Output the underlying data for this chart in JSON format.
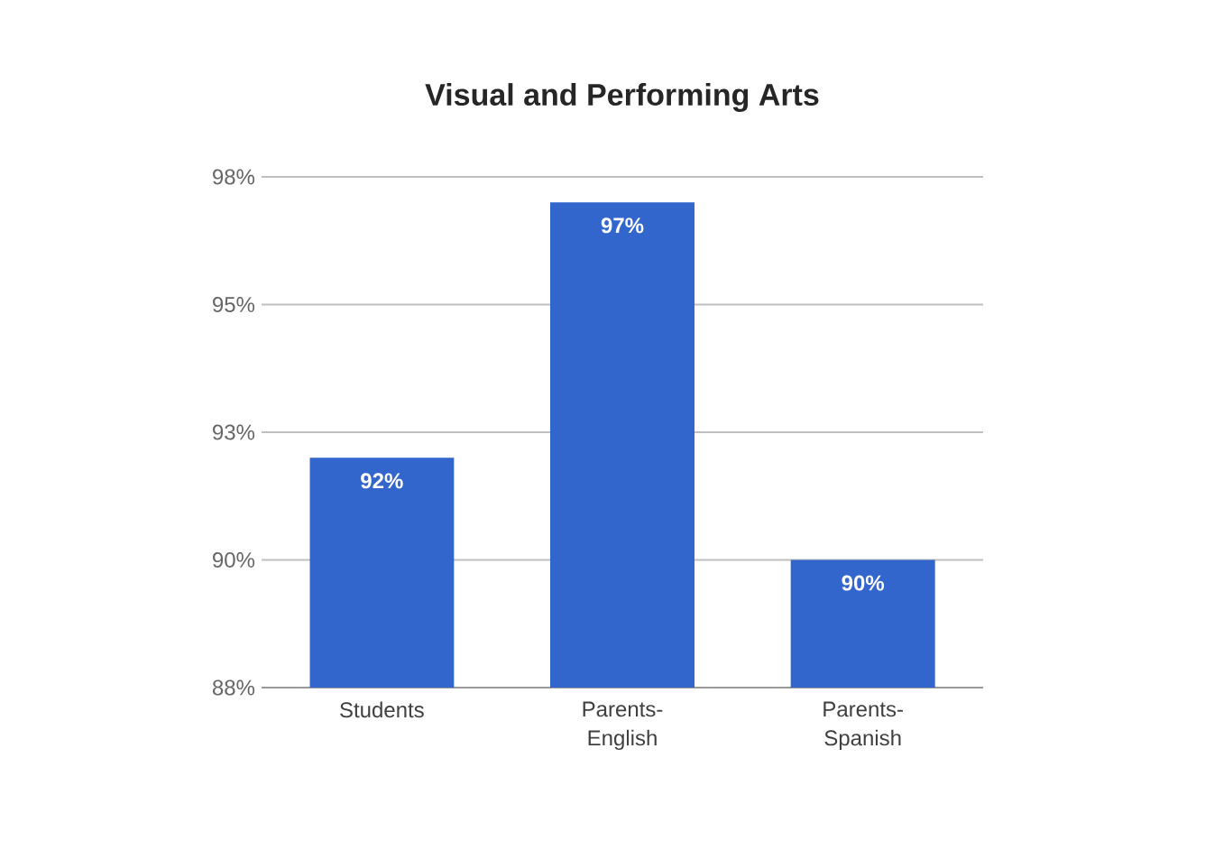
{
  "chart_data": {
    "type": "bar",
    "title": "Visual and Performing Arts",
    "categories": [
      "Students",
      "Parents-English",
      "Parents-Spanish"
    ],
    "values": [
      92,
      97,
      90
    ],
    "value_labels": [
      "92%",
      "97%",
      "90%"
    ],
    "color": "#3366cc",
    "ylim": [
      87.5,
      97.5
    ],
    "yticks": [
      {
        "value": 87.5,
        "label": "88%"
      },
      {
        "value": 90,
        "label": "90%"
      },
      {
        "value": 92.5,
        "label": "93%"
      },
      {
        "value": 95,
        "label": "95%"
      },
      {
        "value": 97.5,
        "label": "98%"
      }
    ],
    "grid": "y"
  }
}
